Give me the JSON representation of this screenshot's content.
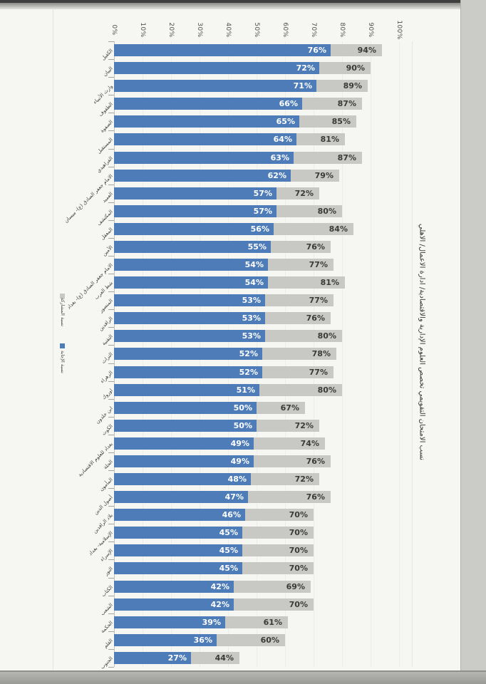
{
  "chart_data": {
    "type": "bar",
    "orientation": "horizontal (photographed column chart rotated 90°)",
    "title": "نسب الامتحان التقويمي تخصص العلوم الإدارية والاقتصادية/ ادارة الاعمال/ الاهلي",
    "axis_ticks": [
      "0%",
      "10%",
      "20%",
      "30%",
      "40%",
      "50%",
      "60%",
      "70%",
      "80%",
      "90%",
      "100%"
    ],
    "xlim": [
      0,
      100
    ],
    "grid": true,
    "legend_position": "left-middle (vertical)",
    "categories": [
      "الكفيل",
      "البيان",
      "وارث الأنبياء",
      "الطفوف",
      "الصفوة",
      "المستقبل",
      "الفراهيدي",
      "الامام جعفر الصادق (ع)- ميسان",
      "العميد",
      "المكتشف",
      "المعقل",
      "الأمين",
      "الامام جعفر الصادق (ع)- بغداد",
      "شط العرب",
      "المنصور",
      "الرافدين",
      "التقنية",
      "التراث",
      "الزهراء",
      "اوروك",
      "ابن خلدون",
      "الكوت",
      "بغداد للعلوم الاقتصادية",
      "الحلة",
      "المأمون",
      "أصول الدين",
      "بلاد الرافدين",
      "الإسلامية- بغداد",
      "الإسراء",
      "النور",
      "الكتاب",
      "الشعب",
      "الحكمة",
      "القلم",
      "الجنوب"
    ],
    "series": [
      {
        "name": "نسبة الإجابة",
        "color": "#4d7cb8",
        "values": [
          76,
          72,
          71,
          66,
          65,
          64,
          63,
          62,
          57,
          57,
          56,
          55,
          54,
          54,
          53,
          53,
          53,
          52,
          52,
          51,
          50,
          50,
          49,
          49,
          48,
          47,
          46,
          45,
          45,
          45,
          42,
          42,
          39,
          36,
          27
        ]
      },
      {
        "name": "نسبة المشاركة",
        "color": "#c8c8c5",
        "values": [
          94,
          90,
          89,
          87,
          85,
          81,
          87,
          79,
          72,
          80,
          84,
          76,
          77,
          81,
          77,
          76,
          80,
          78,
          77,
          80,
          67,
          72,
          74,
          76,
          72,
          76,
          70,
          70,
          70,
          70,
          69,
          70,
          61,
          60,
          44
        ]
      }
    ],
    "value_labels": "each bar labeled with its percentage (white on blue, dark on gray)"
  },
  "legend": {
    "gray_label": "نسبة المشاركة",
    "blue_label": "نسبة الإجابة"
  },
  "colors": {
    "bar_blue": "#4d7cb8",
    "bar_gray": "#c8c8c5",
    "page_bg": "#f6f6f2"
  }
}
